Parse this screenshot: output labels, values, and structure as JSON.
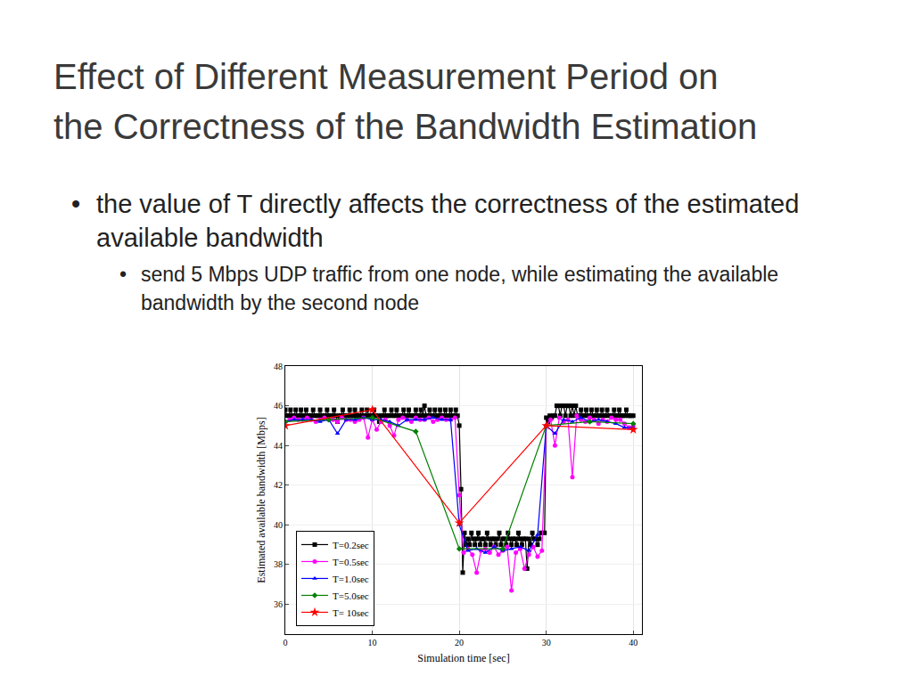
{
  "slide": {
    "title": [
      "Effect of Different Measurement Period on",
      "the Correctness of the Bandwidth Estimation"
    ],
    "bullets": [
      {
        "text": "the value of T directly affects the correctness of the estimated available bandwidth",
        "sub": [
          "send 5 Mbps UDP traffic from one node, while estimating the available bandwidth by the second node"
        ]
      }
    ]
  },
  "chart_data": {
    "type": "line",
    "x_label": "Simulation time [sec]",
    "y_label": "Estimated available bandwidth [Mbps]",
    "xlim": [
      0,
      41
    ],
    "xticks": [
      0,
      10,
      20,
      30,
      40
    ],
    "ylim": [
      34.5,
      48
    ],
    "yticks": [
      36,
      38,
      40,
      42,
      44,
      46,
      48
    ],
    "grid": true,
    "legend": "lower left",
    "series": [
      {
        "name": "T=0.2sec",
        "color": "#000000",
        "marker": "square",
        "line_style": "solid",
        "x": [
          0,
          0.2,
          0.4,
          0.6,
          0.8,
          1,
          1.2,
          1.4,
          1.6,
          1.8,
          2,
          2.2,
          2.4,
          2.6,
          2.8,
          3,
          3.2,
          3.4,
          3.6,
          3.8,
          4,
          4.2,
          4.4,
          4.6,
          4.8,
          5,
          5.2,
          5.4,
          5.6,
          5.8,
          6,
          6.2,
          6.4,
          6.6,
          6.8,
          7,
          7.2,
          7.4,
          7.6,
          7.8,
          8,
          8.2,
          8.4,
          8.6,
          8.8,
          9,
          9.2,
          9.4,
          9.6,
          9.8,
          10,
          10.2,
          10.4,
          10.6,
          10.8,
          11,
          11.2,
          11.4,
          11.6,
          11.8,
          12,
          12.2,
          12.4,
          12.6,
          12.8,
          13,
          13.2,
          13.4,
          13.6,
          13.8,
          14,
          14.2,
          14.4,
          14.6,
          14.8,
          15,
          15.2,
          15.4,
          15.6,
          15.8,
          16,
          16.2,
          16.4,
          16.6,
          16.8,
          17,
          17.2,
          17.4,
          17.6,
          17.8,
          18,
          18.2,
          18.4,
          18.6,
          18.8,
          19,
          19.2,
          19.4,
          19.6,
          19.8,
          20,
          20.2,
          20.4,
          20.6,
          20.8,
          21,
          21.2,
          21.4,
          21.6,
          21.8,
          22,
          22.2,
          22.4,
          22.6,
          22.8,
          23,
          23.2,
          23.4,
          23.6,
          23.8,
          24,
          24.2,
          24.4,
          24.6,
          24.8,
          25,
          25.2,
          25.4,
          25.6,
          25.8,
          26,
          26.2,
          26.4,
          26.6,
          26.8,
          27,
          27.2,
          27.4,
          27.6,
          27.8,
          28,
          28.2,
          28.4,
          28.6,
          28.8,
          29,
          29.2,
          29.4,
          29.6,
          29.8,
          30,
          30.2,
          30.4,
          30.6,
          30.8,
          31,
          31.2,
          31.4,
          31.6,
          31.8,
          32,
          32.2,
          32.4,
          32.6,
          32.8,
          33,
          33.2,
          33.4,
          33.6,
          33.8,
          34,
          34.2,
          34.4,
          34.6,
          34.8,
          35,
          35.2,
          35.4,
          35.6,
          35.8,
          36,
          36.2,
          36.4,
          36.6,
          36.8,
          37,
          37.2,
          37.4,
          37.6,
          37.8,
          38,
          38.2,
          38.4,
          38.6,
          38.8,
          39,
          39.2,
          39.4,
          39.6,
          39.8,
          40
        ],
        "values": [
          45.8,
          45.5,
          45.5,
          45.8,
          45.5,
          45.5,
          45.8,
          45.5,
          45.5,
          45.8,
          45.5,
          45.5,
          45.8,
          45.5,
          45.5,
          45.5,
          45.8,
          45.5,
          45.5,
          45.5,
          45.8,
          45.5,
          45.5,
          45.5,
          45.8,
          45.5,
          45.5,
          45.5,
          45.8,
          45.5,
          45.2,
          45.5,
          45.5,
          45.8,
          45.5,
          45.5,
          45.5,
          45.8,
          45.5,
          45.5,
          45.8,
          45.5,
          45.5,
          45.5,
          45.8,
          45.5,
          45.5,
          45.8,
          45.5,
          45.5,
          45.5,
          45.8,
          45.5,
          45.5,
          45.2,
          45.5,
          45.5,
          45.8,
          45.5,
          45.5,
          45.5,
          45.8,
          45.5,
          45.5,
          45.8,
          45.5,
          45.5,
          45.5,
          45.8,
          45.5,
          45.5,
          45.8,
          45.5,
          45.5,
          45.5,
          45.8,
          45.5,
          45.5,
          45.8,
          45.5,
          46.0,
          45.5,
          45.5,
          45.8,
          45.5,
          45.5,
          45.8,
          45.5,
          45.5,
          45.8,
          45.5,
          45.5,
          45.8,
          45.5,
          45.5,
          45.8,
          45.5,
          45.5,
          45.8,
          45.5,
          45.0,
          41.8,
          37.6,
          39.6,
          39.0,
          39.3,
          39.0,
          39.6,
          39.3,
          39.0,
          39.3,
          39.6,
          39.0,
          39.3,
          39.3,
          39.0,
          39.6,
          39.3,
          39.0,
          39.3,
          39.3,
          39.0,
          39.3,
          39.6,
          39.0,
          39.3,
          39.3,
          39.0,
          39.6,
          39.3,
          39.0,
          39.3,
          39.3,
          39.0,
          39.6,
          39.3,
          39.0,
          39.3,
          39.3,
          37.8,
          39.3,
          39.0,
          39.6,
          39.3,
          39.3,
          39.0,
          39.3,
          39.6,
          39.6,
          39.6,
          45.4,
          45.2,
          45.5,
          45.4,
          45.5,
          45.5,
          46.0,
          46.0,
          45.5,
          46.0,
          46.0,
          45.5,
          46.0,
          46.0,
          45.5,
          46.0,
          45.5,
          46.0,
          45.5,
          45.5,
          45.8,
          45.5,
          45.5,
          45.8,
          45.5,
          45.5,
          45.8,
          45.5,
          45.5,
          45.8,
          45.5,
          45.5,
          45.8,
          45.5,
          45.5,
          45.8,
          45.5,
          45.5,
          45.5,
          45.8,
          45.5,
          45.5,
          45.8,
          45.5,
          45.5,
          45.5,
          45.8,
          45.5,
          45.5,
          45.5,
          45.5
        ]
      },
      {
        "name": "T=0.5sec",
        "color": "#ff00ff",
        "marker": "circle",
        "line_style": "solid",
        "x": [
          0,
          0.5,
          1,
          1.5,
          2,
          2.5,
          3,
          3.5,
          4,
          4.5,
          5,
          5.5,
          6,
          6.5,
          7,
          7.5,
          8,
          8.5,
          9,
          9.5,
          10,
          10.5,
          11,
          11.5,
          12,
          12.5,
          13,
          13.5,
          14,
          14.5,
          15,
          15.5,
          16,
          16.5,
          17,
          17.5,
          18,
          18.5,
          19,
          19.5,
          20,
          20.5,
          21,
          21.5,
          22,
          22.5,
          23,
          23.5,
          24,
          24.5,
          25,
          25.5,
          26,
          26.5,
          27,
          27.5,
          28,
          28.5,
          29,
          29.5,
          30,
          30.5,
          31,
          31.5,
          32,
          32.5,
          33,
          33.5,
          34,
          34.5,
          35,
          35.5,
          36,
          36.5,
          37,
          37.5,
          38,
          38.5,
          39,
          39.5,
          40
        ],
        "values": [
          45.2,
          45.3,
          45.4,
          45.3,
          45.3,
          45.4,
          45.3,
          45.2,
          45.3,
          45.4,
          45.3,
          45.3,
          45.2,
          45.4,
          45.3,
          45.3,
          45.2,
          45.3,
          45.4,
          44.4,
          45.3,
          44.8,
          45.2,
          45.3,
          45.0,
          44.5,
          45.3,
          45.4,
          45.3,
          45.2,
          45.4,
          45.3,
          45.3,
          45.4,
          45.2,
          45.3,
          45.4,
          45.3,
          45.3,
          45.4,
          41.5,
          38.6,
          38.8,
          38.5,
          37.6,
          38.7,
          38.8,
          38.6,
          38.9,
          38.5,
          38.7,
          38.9,
          36.7,
          38.6,
          38.8,
          37.8,
          38.5,
          38.9,
          38.4,
          38.7,
          45.0,
          45.3,
          44.0,
          45.4,
          45.2,
          45.3,
          42.4,
          45.5,
          45.3,
          45.2,
          45.4,
          45.3,
          45.1,
          45.3,
          45.2,
          45.4,
          45.3,
          45.3,
          45.1,
          44.9,
          45.0
        ]
      },
      {
        "name": "T=1.0sec",
        "color": "#0000ff",
        "marker": "triangle-up",
        "line_style": "solid",
        "x": [
          0,
          1,
          2,
          3,
          4,
          5,
          6,
          7,
          8,
          9,
          10,
          11,
          12,
          13,
          14,
          15,
          16,
          17,
          18,
          19,
          20,
          21,
          22,
          23,
          24,
          25,
          26,
          27,
          28,
          29,
          30,
          31,
          32,
          33,
          34,
          35,
          36,
          37,
          38,
          39,
          40
        ],
        "values": [
          45.2,
          45.3,
          45.3,
          45.3,
          45.2,
          45.3,
          44.6,
          45.3,
          45.3,
          45.4,
          45.3,
          45.3,
          45.2,
          45.0,
          45.3,
          45.3,
          45.3,
          45.4,
          45.3,
          45.3,
          40.0,
          38.7,
          38.8,
          38.6,
          38.9,
          38.7,
          38.8,
          38.9,
          38.7,
          39.5,
          45.0,
          44.6,
          45.3,
          45.2,
          45.4,
          45.2,
          45.3,
          45.2,
          45.1,
          44.9,
          44.9
        ]
      },
      {
        "name": "T=5.0sec",
        "color": "#008000",
        "marker": "diamond",
        "line_style": "solid",
        "x": [
          0,
          5,
          10,
          15,
          20,
          25,
          30,
          35,
          40
        ],
        "values": [
          45.2,
          45.3,
          45.4,
          44.7,
          38.8,
          38.8,
          45.0,
          45.2,
          45.1
        ]
      },
      {
        "name": "T= 10sec",
        "color": "#ff0000",
        "marker": "star",
        "line_style": "solid",
        "x": [
          0,
          10,
          20,
          30,
          40
        ],
        "values": [
          45.0,
          45.8,
          40.1,
          45.0,
          44.8
        ]
      }
    ]
  }
}
